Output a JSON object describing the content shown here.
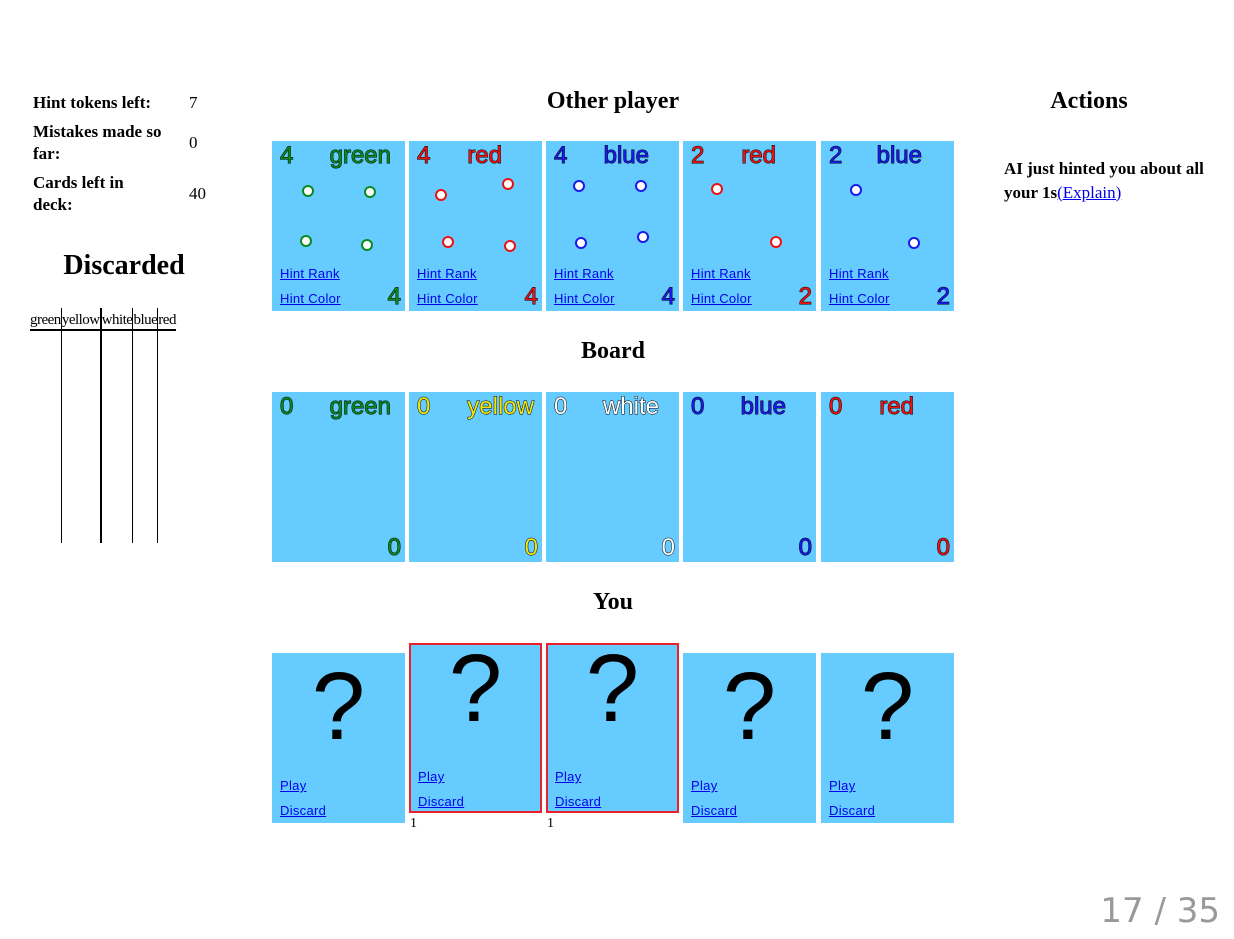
{
  "stats": {
    "hint_tokens_label": "Hint tokens left:",
    "hint_tokens_value": "7",
    "mistakes_label": "Mistakes made so far:",
    "mistakes_value": "0",
    "cards_left_label": "Cards left in deck:",
    "cards_left_value": "40"
  },
  "discarded": {
    "title": "Discarded",
    "columns": [
      "green",
      "yellow",
      "white",
      "blue",
      "red"
    ]
  },
  "other_player": {
    "title": "Other player",
    "hint_rank_label": "Hint Rank",
    "hint_color_label": "Hint Color",
    "cards": [
      {
        "rank": "4",
        "color": "green",
        "hex": "#0a8a1e"
      },
      {
        "rank": "4",
        "color": "red",
        "hex": "#ee1111"
      },
      {
        "rank": "4",
        "color": "blue",
        "hex": "#1a1aee"
      },
      {
        "rank": "2",
        "color": "red",
        "hex": "#ee1111"
      },
      {
        "rank": "2",
        "color": "blue",
        "hex": "#1a1aee"
      }
    ]
  },
  "board": {
    "title": "Board",
    "piles": [
      {
        "rank": "0",
        "color": "green",
        "hex": "#0a8a1e"
      },
      {
        "rank": "0",
        "color": "yellow",
        "hex": "#f2e610"
      },
      {
        "rank": "0",
        "color": "white",
        "hex": "#ffffff"
      },
      {
        "rank": "0",
        "color": "blue",
        "hex": "#1a1aee"
      },
      {
        "rank": "0",
        "color": "red",
        "hex": "#ee1111"
      }
    ]
  },
  "you": {
    "title": "You",
    "play_label": "Play",
    "discard_label": "Discard",
    "unknown_glyph": "?",
    "hint_marker": "1"
  },
  "actions": {
    "title": "Actions",
    "message": "AI just hinted you about all your 1s",
    "explain_link": "(Explain)"
  },
  "slide": {
    "counter": "17 / 35"
  }
}
